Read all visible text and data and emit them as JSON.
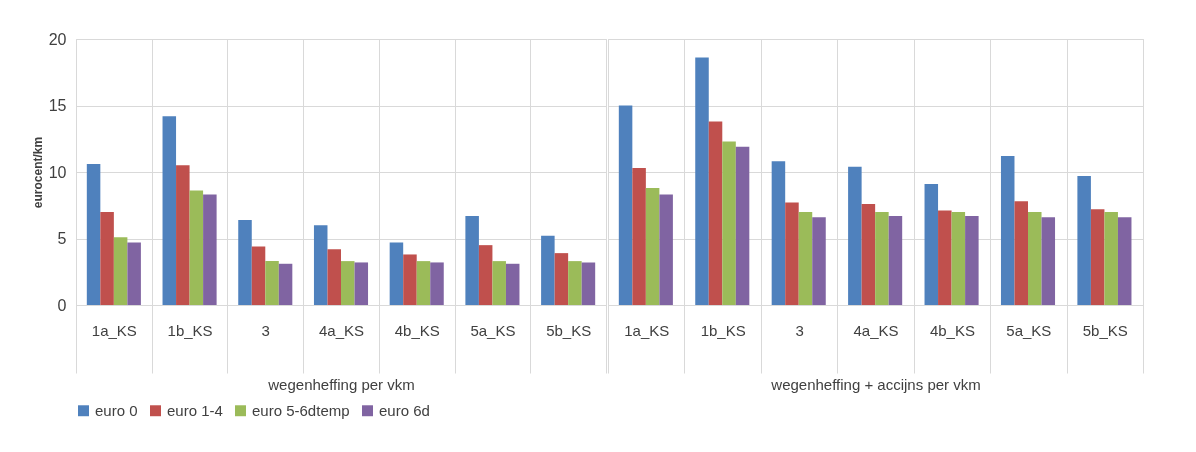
{
  "chart_data": [
    {
      "type": "bar",
      "xlabel": "wegenheffing per vkm",
      "ylabel": "eurocent/km",
      "categories": [
        "1a_KS",
        "1b_KS",
        "3",
        "4a_KS",
        "4b_KS",
        "5a_KS",
        "5b_KS"
      ],
      "series": [
        {
          "name": "euro 0",
          "color": "#4f81bd",
          "values": [
            10.6,
            14.2,
            6.4,
            6.0,
            4.7,
            6.7,
            5.2
          ]
        },
        {
          "name": "euro 1-4",
          "color": "#c0504d",
          "values": [
            7.0,
            10.5,
            4.4,
            4.2,
            3.8,
            4.5,
            3.9
          ]
        },
        {
          "name": "euro 5-6dtemp",
          "color": "#9bbb59",
          "values": [
            5.1,
            8.6,
            3.3,
            3.3,
            3.3,
            3.3,
            3.3
          ]
        },
        {
          "name": "euro 6d",
          "color": "#8064a2",
          "values": [
            4.7,
            8.3,
            3.1,
            3.2,
            3.2,
            3.1,
            3.2
          ]
        }
      ],
      "ylim": [
        0,
        20
      ],
      "yticks": [
        0,
        5,
        10,
        15,
        20
      ],
      "grid": true,
      "legend": "bottom"
    },
    {
      "type": "bar",
      "xlabel": "wegenheffing + accijns per vkm",
      "categories": [
        "1a_KS",
        "1b_KS",
        "3",
        "4a_KS",
        "4b_KS",
        "5a_KS",
        "5b_KS"
      ],
      "series": [
        {
          "name": "euro 0",
          "color": "#4f81bd",
          "values": [
            15.0,
            18.6,
            10.8,
            10.4,
            9.1,
            11.2,
            9.7
          ]
        },
        {
          "name": "euro 1-4",
          "color": "#c0504d",
          "values": [
            10.3,
            13.8,
            7.7,
            7.6,
            7.1,
            7.8,
            7.2
          ]
        },
        {
          "name": "euro 5-6dtemp",
          "color": "#9bbb59",
          "values": [
            8.8,
            12.3,
            7.0,
            7.0,
            7.0,
            7.0,
            7.0
          ]
        },
        {
          "name": "euro 6d",
          "color": "#8064a2",
          "values": [
            8.3,
            11.9,
            6.6,
            6.7,
            6.7,
            6.6,
            6.6
          ]
        }
      ],
      "ylim": [
        0,
        20
      ],
      "yticks": [
        0,
        5,
        10,
        15,
        20
      ],
      "grid": true,
      "legend": "bottom",
      "tick_labels": "x"
    }
  ]
}
